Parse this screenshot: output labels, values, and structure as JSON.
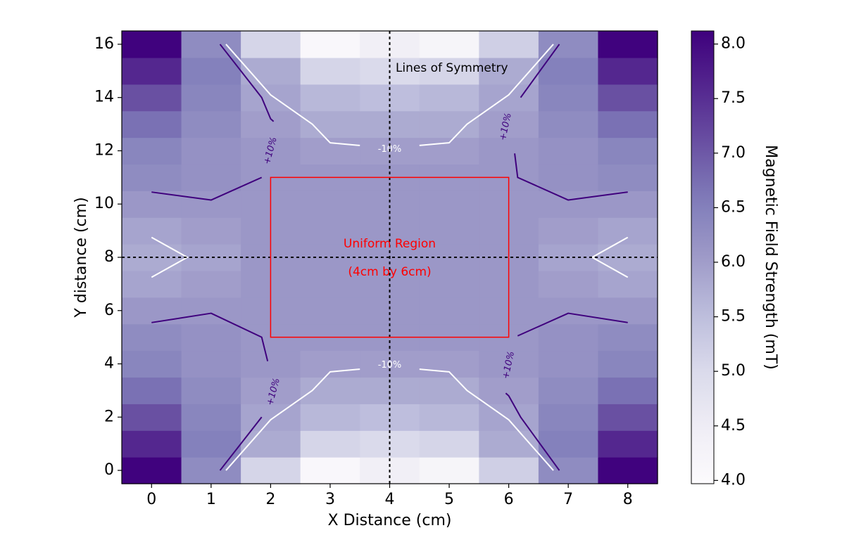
{
  "chart_data": {
    "type": "heatmap",
    "title": "",
    "xlabel": "X Distance (cm)",
    "ylabel": "Y distance (cm)",
    "colorbar_label": "Magnetic Field Strength (mT)",
    "colormap": "Purples",
    "vmin": 3.97,
    "vmax": 8.12,
    "xlim": [
      -0.5,
      8.5
    ],
    "ylim": [
      -0.5,
      16.5
    ],
    "x_ticks": [
      "0",
      "1",
      "2",
      "3",
      "4",
      "5",
      "6",
      "7",
      "8"
    ],
    "y_ticks": [
      "0",
      "2",
      "4",
      "6",
      "8",
      "10",
      "12",
      "14",
      "16"
    ],
    "colorbar_ticks": [
      "4.0",
      "4.5",
      "5.0",
      "5.5",
      "6.0",
      "6.5",
      "7.0",
      "7.5",
      "8.0"
    ],
    "x": [
      0,
      1,
      2,
      3,
      4,
      5,
      6,
      7,
      8
    ],
    "y": [
      0,
      1,
      2,
      3,
      4,
      5,
      6,
      7,
      8,
      9,
      10,
      11,
      12,
      13,
      14,
      15,
      16
    ],
    "z": [
      [
        8.1,
        6.3,
        5.1,
        4.1,
        4.4,
        4.2,
        5.2,
        6.3,
        8.1
      ],
      [
        7.6,
        6.5,
        5.8,
        5.1,
        5.0,
        5.1,
        5.8,
        6.5,
        7.6
      ],
      [
        7.1,
        6.4,
        5.9,
        5.6,
        5.5,
        5.6,
        5.9,
        6.4,
        7.1
      ],
      [
        6.7,
        6.3,
        6.0,
        5.8,
        5.8,
        5.8,
        6.0,
        6.3,
        6.7
      ],
      [
        6.4,
        6.2,
        6.1,
        6.0,
        6.0,
        6.0,
        6.1,
        6.2,
        6.4
      ],
      [
        6.3,
        6.2,
        6.1,
        6.1,
        6.1,
        6.1,
        6.1,
        6.2,
        6.3
      ],
      [
        6.1,
        6.1,
        6.1,
        6.1,
        6.1,
        6.1,
        6.1,
        6.1,
        6.1
      ],
      [
        5.9,
        6.0,
        6.1,
        6.1,
        6.1,
        6.1,
        6.1,
        6.0,
        5.9
      ],
      [
        5.8,
        5.9,
        6.1,
        6.1,
        6.1,
        6.1,
        6.1,
        5.9,
        5.8
      ],
      [
        5.9,
        6.0,
        6.1,
        6.1,
        6.1,
        6.1,
        6.1,
        6.0,
        5.9
      ],
      [
        6.1,
        6.1,
        6.1,
        6.1,
        6.1,
        6.1,
        6.1,
        6.1,
        6.1
      ],
      [
        6.3,
        6.2,
        6.1,
        6.1,
        6.1,
        6.1,
        6.1,
        6.2,
        6.3
      ],
      [
        6.4,
        6.2,
        6.1,
        6.0,
        6.0,
        6.0,
        6.1,
        6.2,
        6.4
      ],
      [
        6.7,
        6.3,
        6.0,
        5.8,
        5.8,
        5.8,
        6.0,
        6.3,
        6.7
      ],
      [
        7.1,
        6.4,
        5.9,
        5.6,
        5.5,
        5.6,
        5.9,
        6.4,
        7.1
      ],
      [
        7.6,
        6.5,
        5.8,
        5.1,
        5.0,
        5.1,
        5.8,
        6.5,
        7.6
      ],
      [
        8.1,
        6.3,
        5.1,
        4.1,
        4.4,
        4.2,
        5.2,
        6.3,
        8.1
      ]
    ],
    "symmetry_lines": {
      "x": 4,
      "y": 8,
      "color": "#000000",
      "style": "dotted"
    },
    "uniform_region": {
      "x0": 2,
      "y0": 5,
      "x1": 6,
      "y1": 11,
      "color": "#ff0000"
    },
    "contours": [
      {
        "level": "-10%",
        "color": "#ffffff",
        "paths": [
          [
            [
              1.25,
              16.0
            ],
            [
              2.0,
              14.1
            ],
            [
              2.7,
              13.0
            ],
            [
              3.0,
              12.3
            ],
            [
              3.5,
              12.2
            ]
          ],
          [
            [
              4.5,
              12.2
            ],
            [
              5.0,
              12.3
            ],
            [
              5.3,
              13.0
            ],
            [
              6.0,
              14.1
            ],
            [
              6.75,
              16.0
            ]
          ],
          [
            [
              1.25,
              0.0
            ],
            [
              2.0,
              1.9
            ],
            [
              2.7,
              3.0
            ],
            [
              3.0,
              3.7
            ],
            [
              3.5,
              3.8
            ]
          ],
          [
            [
              4.5,
              3.8
            ],
            [
              5.0,
              3.7
            ],
            [
              5.3,
              3.0
            ],
            [
              6.0,
              1.9
            ],
            [
              6.75,
              0.0
            ]
          ],
          [
            [
              0.0,
              8.75
            ],
            [
              0.6,
              8.0
            ],
            [
              0.0,
              7.25
            ]
          ],
          [
            [
              8.0,
              8.75
            ],
            [
              7.4,
              8.0
            ],
            [
              8.0,
              7.25
            ]
          ]
        ]
      },
      {
        "level": "+10%",
        "color": "#3f007d",
        "paths": [
          [
            [
              1.15,
              16.0
            ],
            [
              1.85,
              14.0
            ],
            [
              2.0,
              13.2
            ],
            [
              2.05,
              13.1
            ]
          ],
          [
            [
              6.85,
              16.0
            ],
            [
              6.2,
              14.0
            ]
          ],
          [
            [
              0.0,
              10.45
            ],
            [
              1.0,
              10.15
            ],
            [
              1.85,
              11.0
            ]
          ],
          [
            [
              6.1,
              11.9
            ],
            [
              6.15,
              11.0
            ],
            [
              7.0,
              10.15
            ],
            [
              8.0,
              10.45
            ]
          ],
          [
            [
              0.0,
              5.55
            ],
            [
              1.0,
              5.9
            ],
            [
              1.85,
              5.0
            ],
            [
              1.95,
              4.1
            ]
          ],
          [
            [
              6.15,
              5.05
            ],
            [
              7.0,
              5.9
            ],
            [
              8.0,
              5.55
            ]
          ],
          [
            [
              1.15,
              0.0
            ],
            [
              1.85,
              2.0
            ]
          ],
          [
            [
              6.85,
              0.0
            ],
            [
              6.2,
              2.0
            ],
            [
              6.0,
              2.8
            ],
            [
              5.95,
              2.9
            ]
          ]
        ]
      }
    ],
    "contour_labels": [
      {
        "text": "-10%",
        "x": 4.0,
        "y": 12.05,
        "rotation": 0,
        "color": "#ffffff"
      },
      {
        "text": "-10%",
        "x": 4.0,
        "y": 3.95,
        "rotation": 0,
        "color": "#ffffff"
      },
      {
        "text": "+10%",
        "x": 2.0,
        "y": 12.0,
        "rotation": -75,
        "color": "#3f007d"
      },
      {
        "text": "+10%",
        "x": 5.95,
        "y": 12.9,
        "rotation": -78,
        "color": "#3f007d"
      },
      {
        "text": "+10%",
        "x": 2.05,
        "y": 2.95,
        "rotation": -75,
        "color": "#3f007d"
      },
      {
        "text": "+10%",
        "x": 6.0,
        "y": 3.95,
        "rotation": -78,
        "color": "#3f007d"
      }
    ],
    "annotations": [
      {
        "text": "Lines of Symmetry",
        "x": 4.1,
        "y": 15.1,
        "color": "#000000",
        "size": 17,
        "anchor": "start"
      },
      {
        "text": "Uniform Region",
        "x": 4.0,
        "y": 8.5,
        "color": "#ff0000",
        "size": 17,
        "anchor": "middle"
      },
      {
        "text": "(4cm by 6cm)",
        "x": 4.0,
        "y": 7.45,
        "color": "#ff0000",
        "size": 17,
        "anchor": "middle"
      }
    ]
  }
}
